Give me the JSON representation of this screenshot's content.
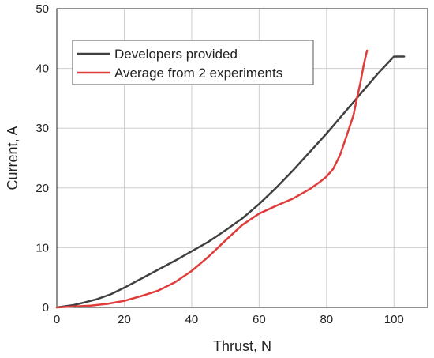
{
  "chart_data": {
    "type": "line",
    "xlabel": "Thrust, N",
    "ylabel": "Current, A",
    "xlim": [
      0,
      110
    ],
    "ylim": [
      0,
      50
    ],
    "xticks": [
      0,
      20,
      40,
      60,
      80,
      100
    ],
    "yticks": [
      0,
      10,
      20,
      30,
      40,
      50
    ],
    "grid": true,
    "legend_position": "top-left",
    "series": [
      {
        "name": "Developers provided",
        "color": "#404040",
        "x": [
          0,
          5,
          8,
          12,
          16,
          20,
          25,
          30,
          35,
          40,
          45,
          50,
          55,
          60,
          65,
          70,
          75,
          80,
          85,
          90,
          95,
          100,
          103
        ],
        "y": [
          0,
          0.4,
          0.8,
          1.4,
          2.2,
          3.3,
          4.8,
          6.3,
          7.8,
          9.4,
          11.0,
          12.9,
          14.9,
          17.3,
          20.0,
          22.9,
          26.0,
          29.1,
          32.4,
          35.7,
          39.0,
          42.0,
          42.0
        ]
      },
      {
        "name": "Average from 2 experiments",
        "color": "#e03c3c",
        "x": [
          0,
          10,
          15,
          20,
          25,
          30,
          35,
          40,
          45,
          50,
          55,
          60,
          65,
          70,
          75,
          78,
          80,
          82,
          84,
          86,
          88,
          89,
          90,
          91,
          92
        ],
        "y": [
          0,
          0.3,
          0.6,
          1.1,
          1.9,
          2.8,
          4.2,
          6.1,
          8.5,
          11.2,
          13.8,
          15.7,
          17.0,
          18.2,
          19.8,
          21.0,
          21.9,
          23.2,
          25.5,
          28.8,
          32.2,
          35.0,
          37.5,
          40.5,
          43.0
        ]
      }
    ]
  }
}
